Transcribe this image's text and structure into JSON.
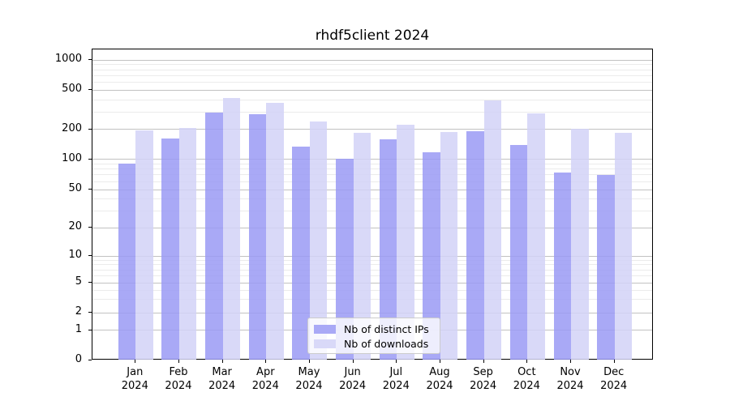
{
  "title": "rhdf5client 2024",
  "chart_data": {
    "type": "bar",
    "title": "rhdf5client 2024",
    "categories": [
      "Jan",
      "Feb",
      "Mar",
      "Apr",
      "May",
      "Jun",
      "Jul",
      "Aug",
      "Sep",
      "Oct",
      "Nov",
      "Dec"
    ],
    "x_tick_second_line": "2024",
    "series": [
      {
        "name": "Nb of distinct IPs",
        "color": "#a9a9f6",
        "values": [
          91,
          162,
          297,
          285,
          133,
          101,
          158,
          117,
          193,
          139,
          74,
          70
        ]
      },
      {
        "name": "Nb of downloads",
        "color": "#d9d9f8",
        "values": [
          196,
          208,
          415,
          370,
          240,
          183,
          222,
          187,
          395,
          289,
          201,
          184
        ]
      }
    ],
    "yscale": "symlog",
    "y_ticks": [
      0,
      1,
      2,
      5,
      10,
      20,
      50,
      100,
      200,
      500,
      1000
    ],
    "y_minor_ticks": [
      3,
      4,
      6,
      7,
      8,
      9,
      30,
      40,
      60,
      70,
      80,
      90,
      300,
      400,
      600,
      700,
      800,
      900
    ],
    "ylim": [
      0,
      1300
    ],
    "grid": true,
    "legend": {
      "entries": [
        "Nb of distinct IPs",
        "Nb of downloads"
      ],
      "position": "inside-bottom-center"
    }
  }
}
